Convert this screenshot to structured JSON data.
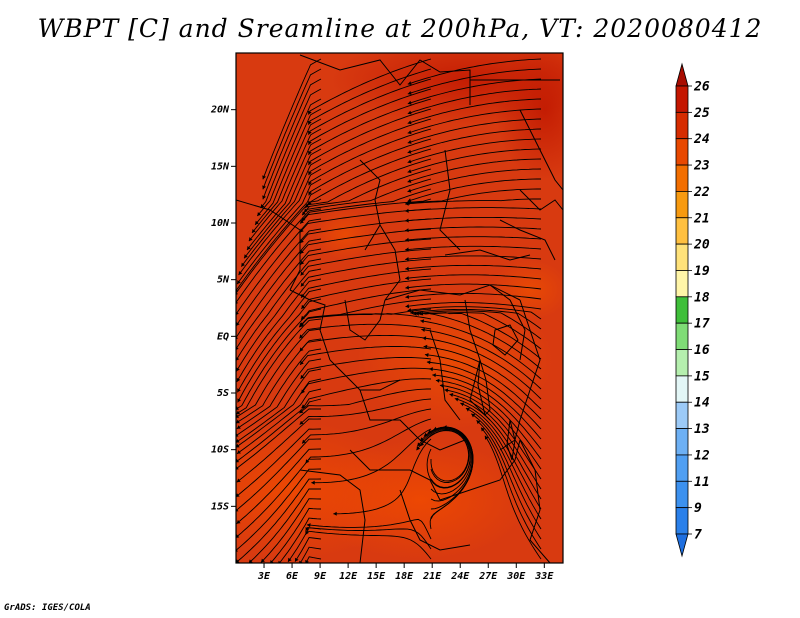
{
  "title": "WBPT [C] and Sreamline at 200hPa, VT: 2020080412",
  "credit": "GrADS: IGES/COLA",
  "chart_data": {
    "type": "heatmap",
    "variable": "WBPT [C]",
    "overlay": "streamlines",
    "level": "200hPa",
    "valid_time": "2020080412",
    "x_range": [
      0,
      35
    ],
    "y_range": [
      -20,
      25
    ],
    "x_ticks": [
      {
        "value": 3,
        "label": "3E"
      },
      {
        "value": 6,
        "label": "6E"
      },
      {
        "value": 9,
        "label": "9E"
      },
      {
        "value": 12,
        "label": "12E"
      },
      {
        "value": 15,
        "label": "15E"
      },
      {
        "value": 18,
        "label": "18E"
      },
      {
        "value": 21,
        "label": "21E"
      },
      {
        "value": 24,
        "label": "24E"
      },
      {
        "value": 27,
        "label": "27E"
      },
      {
        "value": 30,
        "label": "30E"
      },
      {
        "value": 33,
        "label": "33E"
      }
    ],
    "y_ticks": [
      {
        "value": 20,
        "label": "20N"
      },
      {
        "value": 15,
        "label": "15N"
      },
      {
        "value": 10,
        "label": "10N"
      },
      {
        "value": 5,
        "label": "5N"
      },
      {
        "value": 0,
        "label": "EQ"
      },
      {
        "value": -5,
        "label": "5S"
      },
      {
        "value": -10,
        "label": "10S"
      },
      {
        "value": -15,
        "label": "15S"
      }
    ],
    "colorbar": {
      "levels": [
        "7",
        "9",
        "11",
        "12",
        "13",
        "14",
        "15",
        "16",
        "17",
        "18",
        "19",
        "20",
        "21",
        "22",
        "23",
        "24",
        "25",
        "26"
      ],
      "colors": [
        "#1e6fe0",
        "#2a80ea",
        "#3c91ef",
        "#509ff2",
        "#6db0f4",
        "#9ccaf7",
        "#e3f6f6",
        "#b5efae",
        "#7fdc76",
        "#3fbf3a",
        "#fff5a8",
        "#ffe27a",
        "#ffc040",
        "#f79a10",
        "#f26e00",
        "#e84800",
        "#d62c00",
        "#c41600",
        "#a80c00"
      ],
      "extend": "both"
    },
    "field_summary": {
      "dominant_range": [
        23,
        25
      ],
      "notes": "Nearly uniform 23-25 C field; slightly lower values (orange, 23) over the south-west and a small patch near 13E 5N; highest (dark red, 25) along the northern border region."
    }
  }
}
